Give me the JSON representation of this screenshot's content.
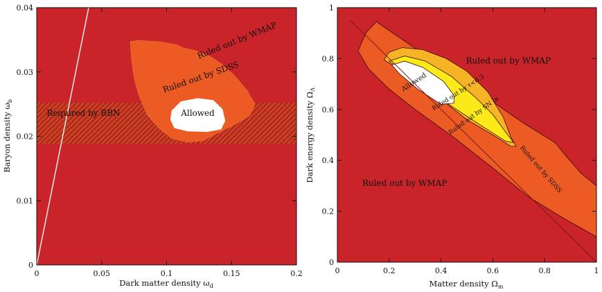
{
  "chart_data": [
    {
      "type": "contour",
      "xlabel": "Dark matter density ω",
      "xlabel_sub": "d",
      "ylabel": "Baryon density ω",
      "ylabel_sub": "b",
      "xlim": [
        0,
        0.2
      ],
      "ylim": [
        0,
        0.04
      ],
      "xticks": [
        {
          "value": 0,
          "label": "0"
        },
        {
          "value": 0.05,
          "label": "0.05"
        },
        {
          "value": 0.1,
          "label": "0.1"
        },
        {
          "value": 0.15,
          "label": "0.15"
        },
        {
          "value": 0.2,
          "label": "0.2"
        }
      ],
      "yticks": [
        {
          "value": 0,
          "label": "0"
        },
        {
          "value": 0.01,
          "label": "0.01"
        },
        {
          "value": 0.02,
          "label": "0.02"
        },
        {
          "value": 0.03,
          "label": "0.03"
        },
        {
          "value": 0.04,
          "label": "0.04"
        }
      ],
      "line": {
        "x": [
          0,
          0.04
        ],
        "y": [
          0,
          0.04
        ],
        "color": "#e0e0e0"
      },
      "band": {
        "label": "Required by BBN",
        "ymin": 0.0188,
        "ymax": 0.0252,
        "color": "#b82a1e",
        "hatch": "#d2692b"
      },
      "regions": [
        {
          "name": "Ruled out by WMAP",
          "color": "#c8242a",
          "label_pos": [
            0.155,
            0.0345
          ],
          "label_angle": -22
        },
        {
          "name": "Ruled out by SDSS",
          "color": "#ec5b24",
          "label_pos": [
            0.127,
            0.0288
          ],
          "label_angle": -19,
          "x": [
            0.072,
            0.078,
            0.095,
            0.108,
            0.112,
            0.122,
            0.132,
            0.142,
            0.152,
            0.162,
            0.168,
            0.164,
            0.152,
            0.138,
            0.128,
            0.116,
            0.104,
            0.094,
            0.085,
            0.079,
            0.075,
            0.073,
            0.072
          ],
          "y": [
            0.0347,
            0.0349,
            0.0347,
            0.0342,
            0.0338,
            0.0333,
            0.0326,
            0.0313,
            0.0295,
            0.0271,
            0.025,
            0.0232,
            0.0218,
            0.0204,
            0.0193,
            0.0191,
            0.0197,
            0.0213,
            0.0234,
            0.0262,
            0.029,
            0.032,
            0.0347
          ]
        },
        {
          "name": "Allowed",
          "color": "#ffffff",
          "label_pos": [
            0.124,
            0.0232
          ],
          "label_angle": 0,
          "x": [
            0.104,
            0.111,
            0.124,
            0.136,
            0.143,
            0.145,
            0.142,
            0.131,
            0.116,
            0.106,
            0.103,
            0.104
          ],
          "y": [
            0.024,
            0.0254,
            0.0259,
            0.0256,
            0.0242,
            0.0224,
            0.0211,
            0.0207,
            0.0208,
            0.0213,
            0.0226,
            0.024
          ]
        }
      ],
      "band_label_pos": [
        0.036,
        0.0232
      ]
    },
    {
      "type": "contour",
      "xlabel": "Matter density Ω",
      "xlabel_sub": "m",
      "ylabel": "Dark energy density Ω",
      "ylabel_sub": "Λ",
      "xlim": [
        0,
        1
      ],
      "ylim": [
        0,
        1
      ],
      "xticks": [
        {
          "value": 0,
          "label": "0"
        },
        {
          "value": 0.2,
          "label": "0.2"
        },
        {
          "value": 0.4,
          "label": "0.4"
        },
        {
          "value": 0.6,
          "label": "0.6"
        },
        {
          "value": 0.8,
          "label": "0.8"
        },
        {
          "value": 1,
          "label": "1"
        }
      ],
      "yticks": [
        {
          "value": 0,
          "label": "0"
        },
        {
          "value": 0.2,
          "label": "0.2"
        },
        {
          "value": 0.4,
          "label": "0.4"
        },
        {
          "value": 0.6,
          "label": "0.6"
        },
        {
          "value": 0.8,
          "label": "0.8"
        },
        {
          "value": 1,
          "label": "1"
        }
      ],
      "line": {
        "x": [
          0.05,
          1
        ],
        "y": [
          0.95,
          0
        ],
        "color": "#7a1a14"
      },
      "regions": [
        {
          "name": "Ruled out by WMAP",
          "color": "#c8242a",
          "label_pos": [
            0.66,
            0.78
          ],
          "label_angle": 0,
          "extra_label": "Ruled out by WMAP",
          "extra_label_pos": [
            0.26,
            0.3
          ]
        },
        {
          "name": "Ruled out by SDSS",
          "color": "#ec5b24",
          "label_pos": [
            0.78,
            0.36
          ],
          "label_angle": 49,
          "x": [
            0.08,
            0.11,
            0.15,
            0.2,
            0.3,
            0.45,
            0.6,
            0.72,
            0.84,
            0.88,
            0.94,
            1.0,
            1.0,
            0.86,
            0.74,
            0.6,
            0.45,
            0.3,
            0.2,
            0.12,
            0.08
          ],
          "y": [
            0.83,
            0.9,
            0.945,
            0.91,
            0.84,
            0.74,
            0.63,
            0.545,
            0.47,
            0.42,
            0.35,
            0.3,
            0.1,
            0.18,
            0.255,
            0.37,
            0.49,
            0.6,
            0.68,
            0.76,
            0.83
          ]
        },
        {
          "name": "Ruled out by τ<0.3",
          "label": "Ruled out by τ<0.3",
          "color": "#f6b325",
          "label_pos": [
            0.47,
            0.66
          ],
          "label_angle": -33,
          "x": [
            0.18,
            0.2,
            0.25,
            0.33,
            0.42,
            0.5,
            0.58,
            0.64,
            0.67,
            0.69,
            0.67,
            0.6,
            0.5,
            0.4,
            0.3,
            0.22,
            0.18
          ],
          "y": [
            0.795,
            0.825,
            0.843,
            0.835,
            0.8,
            0.75,
            0.67,
            0.57,
            0.49,
            0.455,
            0.455,
            0.5,
            0.56,
            0.64,
            0.71,
            0.77,
            0.795
          ]
        },
        {
          "name": "Ruled out by SN Ia",
          "label": "Ruled out by SN Ia",
          "color": "#fbe91a",
          "label_pos": [
            0.53,
            0.57
          ],
          "label_angle": -36,
          "x": [
            0.2,
            0.26,
            0.34,
            0.44,
            0.53,
            0.6,
            0.65,
            0.68,
            0.65,
            0.55,
            0.43,
            0.32,
            0.24,
            0.2
          ],
          "y": [
            0.79,
            0.81,
            0.79,
            0.73,
            0.65,
            0.58,
            0.51,
            0.47,
            0.475,
            0.54,
            0.62,
            0.7,
            0.76,
            0.79
          ]
        },
        {
          "name": "Allowed",
          "label": "Allowed",
          "color": "#ffffff",
          "label_pos": [
            0.3,
            0.7
          ],
          "label_angle": -33,
          "x": [
            0.21,
            0.26,
            0.33,
            0.41,
            0.45,
            0.45,
            0.4,
            0.31,
            0.24,
            0.21
          ],
          "y": [
            0.775,
            0.79,
            0.765,
            0.71,
            0.655,
            0.625,
            0.62,
            0.68,
            0.74,
            0.775
          ]
        }
      ]
    }
  ]
}
